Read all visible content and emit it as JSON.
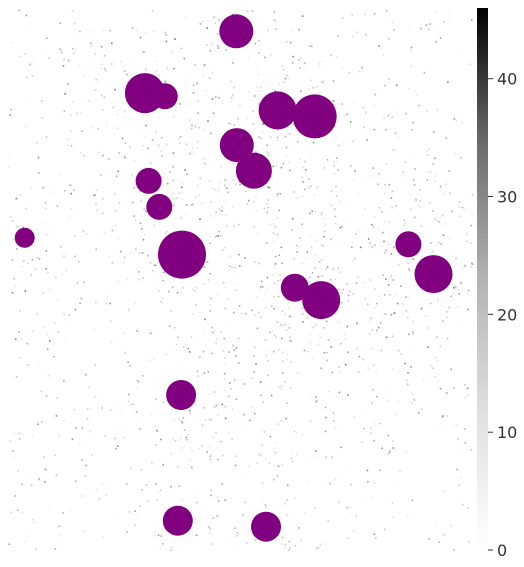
{
  "chart_data": {
    "type": "scatter",
    "title": "",
    "xlabel": "",
    "ylabel": "",
    "background": "density-heatmap",
    "colorbar": {
      "min": 0,
      "max": 46,
      "ticks": [
        0,
        10,
        20,
        30,
        40
      ],
      "tick_labels": [
        "0",
        "10",
        "20",
        "30",
        "40"
      ],
      "colormap": "Greys",
      "location": "right"
    },
    "marker_color": "#800080",
    "x_range": [
      0,
      1
    ],
    "y_range": [
      0,
      1
    ],
    "points": [
      {
        "x": 0.492,
        "y": 0.957,
        "s": 17
      },
      {
        "x": 0.295,
        "y": 0.843,
        "s": 20
      },
      {
        "x": 0.338,
        "y": 0.837,
        "s": 13
      },
      {
        "x": 0.581,
        "y": 0.811,
        "s": 19
      },
      {
        "x": 0.661,
        "y": 0.8,
        "s": 22
      },
      {
        "x": 0.493,
        "y": 0.747,
        "s": 17
      },
      {
        "x": 0.53,
        "y": 0.7,
        "s": 18
      },
      {
        "x": 0.303,
        "y": 0.681,
        "s": 13
      },
      {
        "x": 0.326,
        "y": 0.633,
        "s": 13
      },
      {
        "x": 0.036,
        "y": 0.576,
        "s": 10
      },
      {
        "x": 0.375,
        "y": 0.545,
        "s": 24
      },
      {
        "x": 0.863,
        "y": 0.564,
        "s": 13
      },
      {
        "x": 0.917,
        "y": 0.509,
        "s": 19
      },
      {
        "x": 0.618,
        "y": 0.484,
        "s": 14
      },
      {
        "x": 0.675,
        "y": 0.461,
        "s": 19
      },
      {
        "x": 0.373,
        "y": 0.286,
        "s": 15
      },
      {
        "x": 0.366,
        "y": 0.054,
        "s": 15
      },
      {
        "x": 0.556,
        "y": 0.043,
        "s": 15
      }
    ]
  }
}
